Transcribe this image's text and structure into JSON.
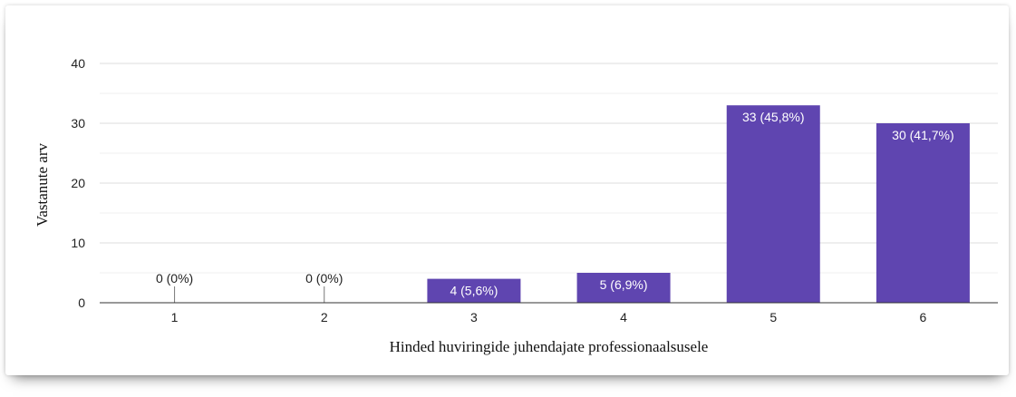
{
  "chart_data": {
    "type": "bar",
    "title": "",
    "xlabel": "Hinded huviringide juhendajate professionaalsusele",
    "ylabel": "Vastanute arv",
    "categories": [
      "1",
      "2",
      "3",
      "4",
      "5",
      "6"
    ],
    "values": [
      0,
      0,
      4,
      5,
      33,
      30
    ],
    "data_labels": [
      "0 (0%)",
      "0 (0%)",
      "4 (5,6%)",
      "5 (6,9%)",
      "33 (45,8%)",
      "30 (41,7%)"
    ],
    "ylim": [
      0,
      40
    ],
    "yticks": [
      0,
      10,
      20,
      30,
      40
    ],
    "grid": true,
    "legend": "none",
    "bar_color": "#5f45b0",
    "label_inside_color": "#ffffff",
    "label_outside_color": "#222222"
  }
}
